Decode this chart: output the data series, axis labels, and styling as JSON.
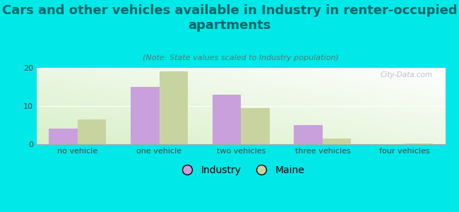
{
  "title": "Cars and other vehicles available in Industry in renter-occupied\napartments",
  "subtitle": "(Note: State values scaled to Industry population)",
  "categories": [
    "no vehicle",
    "one vehicle",
    "two vehicles",
    "three vehicles",
    "four vehicles"
  ],
  "industry_values": [
    4.0,
    15.0,
    13.0,
    5.0,
    0.0
  ],
  "maine_values": [
    6.5,
    19.0,
    9.5,
    1.5,
    0.2
  ],
  "industry_color": "#c9a0dc",
  "maine_color": "#c8d4a0",
  "background_color": "#00e8e8",
  "ylim": [
    0,
    20
  ],
  "yticks": [
    0,
    10,
    20
  ],
  "bar_width": 0.35,
  "title_fontsize": 13,
  "subtitle_fontsize": 8,
  "legend_fontsize": 10,
  "axis_fontsize": 8,
  "title_color": "#006666",
  "subtitle_color": "#557777",
  "tick_color": "#444444",
  "watermark_text": "City-Data.com"
}
